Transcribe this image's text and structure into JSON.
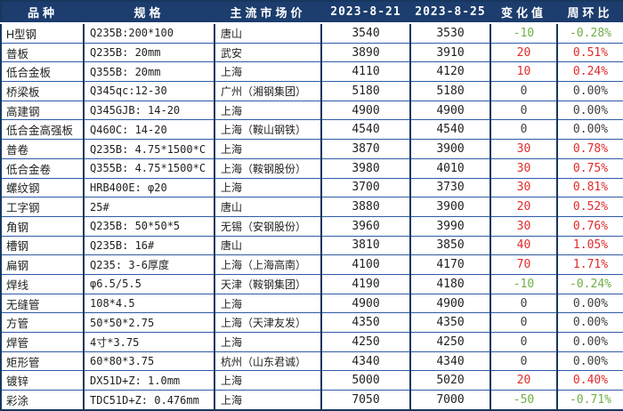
{
  "colors": {
    "header_bg": "#1c3d6d",
    "border_vertical": "#17375d",
    "border_horizontal": "#2e5ca6",
    "header_text": "#ffffff",
    "body_text": "#1f1f1f",
    "trend": {
      "up": "#e02b2b",
      "down": "#6fad47",
      "flat": "#404040"
    }
  },
  "table": {
    "columns": [
      {
        "key": "variety",
        "label": "品种"
      },
      {
        "key": "spec",
        "label": "规格"
      },
      {
        "key": "market",
        "label": "主流市场价"
      },
      {
        "key": "price_0821",
        "label": "2023-8-21"
      },
      {
        "key": "price_0825",
        "label": "2023-8-25"
      },
      {
        "key": "change",
        "label": "变化值"
      },
      {
        "key": "wow",
        "label": "周环比"
      }
    ],
    "rows": [
      {
        "variety": "H型钢",
        "spec": "Q235B:200*100",
        "market": "唐山",
        "price_0821": "3540",
        "price_0825": "3530",
        "change": "-10",
        "wow": "-0.28%",
        "trend": "down"
      },
      {
        "variety": "普板",
        "spec": "Q235B: 20mm",
        "market": "武安",
        "price_0821": "3890",
        "price_0825": "3910",
        "change": "20",
        "wow": "0.51%",
        "trend": "up"
      },
      {
        "variety": "低合金板",
        "spec": "Q355B: 20mm",
        "market": "上海",
        "price_0821": "4110",
        "price_0825": "4120",
        "change": "10",
        "wow": "0.24%",
        "trend": "up"
      },
      {
        "variety": "桥梁板",
        "spec": "Q345qc:12-30",
        "market": "广州（湘钢集团）",
        "price_0821": "5180",
        "price_0825": "5180",
        "change": "0",
        "wow": "0.00%",
        "trend": "flat"
      },
      {
        "variety": "高建钢",
        "spec": "Q345GJB: 14-20",
        "market": "上海",
        "price_0821": "4900",
        "price_0825": "4900",
        "change": "0",
        "wow": "0.00%",
        "trend": "flat"
      },
      {
        "variety": "低合金高强板",
        "spec": "Q460C: 14-20",
        "market": "上海（鞍山钢铁）",
        "price_0821": "4540",
        "price_0825": "4540",
        "change": "0",
        "wow": "0.00%",
        "trend": "flat"
      },
      {
        "variety": "普卷",
        "spec": "Q235B: 4.75*1500*C",
        "market": "上海",
        "price_0821": "3870",
        "price_0825": "3900",
        "change": "30",
        "wow": "0.78%",
        "trend": "up"
      },
      {
        "variety": "低合金卷",
        "spec": "Q355B: 4.75*1500*C",
        "market": "上海（鞍钢股份）",
        "price_0821": "3980",
        "price_0825": "4010",
        "change": "30",
        "wow": "0.75%",
        "trend": "up"
      },
      {
        "variety": "螺纹钢",
        "spec": "HRB400E: φ20",
        "market": "上海",
        "price_0821": "3700",
        "price_0825": "3730",
        "change": "30",
        "wow": "0.81%",
        "trend": "up"
      },
      {
        "variety": "工字钢",
        "spec": "25#",
        "market": "唐山",
        "price_0821": "3880",
        "price_0825": "3900",
        "change": "20",
        "wow": "0.52%",
        "trend": "up"
      },
      {
        "variety": "角钢",
        "spec": "Q235B: 50*50*5",
        "market": "无锡（安钢股份）",
        "price_0821": "3960",
        "price_0825": "3990",
        "change": "30",
        "wow": "0.76%",
        "trend": "up"
      },
      {
        "variety": "槽钢",
        "spec": "Q235B: 16#",
        "market": "唐山",
        "price_0821": "3810",
        "price_0825": "3850",
        "change": "40",
        "wow": "1.05%",
        "trend": "up"
      },
      {
        "variety": "扁钢",
        "spec": "Q235: 3-6厚度",
        "market": "上海（上海高南）",
        "price_0821": "4100",
        "price_0825": "4170",
        "change": "70",
        "wow": "1.71%",
        "trend": "up"
      },
      {
        "variety": "焊线",
        "spec": "φ6.5/5.5",
        "market": "天津（鞍钢集团）",
        "price_0821": "4190",
        "price_0825": "4180",
        "change": "-10",
        "wow": "-0.24%",
        "trend": "down"
      },
      {
        "variety": "无缝管",
        "spec": "108*4.5",
        "market": "上海",
        "price_0821": "4900",
        "price_0825": "4900",
        "change": "0",
        "wow": "0.00%",
        "trend": "flat"
      },
      {
        "variety": "方管",
        "spec": "50*50*2.75",
        "market": "上海（天津友发）",
        "price_0821": "4350",
        "price_0825": "4350",
        "change": "0",
        "wow": "0.00%",
        "trend": "flat"
      },
      {
        "variety": "焊管",
        "spec": "4寸*3.75",
        "market": "上海",
        "price_0821": "4250",
        "price_0825": "4250",
        "change": "0",
        "wow": "0.00%",
        "trend": "flat"
      },
      {
        "variety": "矩形管",
        "spec": "60*80*3.75",
        "market": "杭州（山东君诚）",
        "price_0821": "4340",
        "price_0825": "4340",
        "change": "0",
        "wow": "0.00%",
        "trend": "flat"
      },
      {
        "variety": "镀锌",
        "spec": "DX51D+Z: 1.0mm",
        "market": "上海",
        "price_0821": "5000",
        "price_0825": "5020",
        "change": "20",
        "wow": "0.40%",
        "trend": "up"
      },
      {
        "variety": "彩涂",
        "spec": "TDC51D+Z: 0.476mm",
        "market": "上海",
        "price_0821": "7050",
        "price_0825": "7000",
        "change": "-50",
        "wow": "-0.71%",
        "trend": "down"
      }
    ]
  }
}
